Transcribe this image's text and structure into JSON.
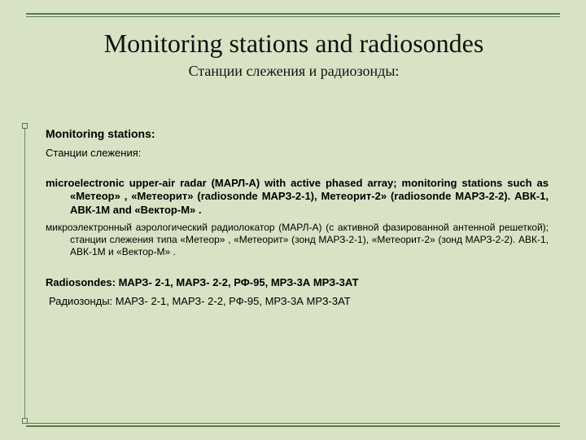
{
  "colors": {
    "background": "#d7e3c4",
    "rule": "#5b7a4f",
    "text": "#000000"
  },
  "title": {
    "en": "Monitoring stations and radiosondes",
    "ru": "Станции слежения и радиозонды:"
  },
  "section1": {
    "heading_en": "Monitoring stations:",
    "heading_ru": "Станции слежения:",
    "para_en": "microelectronic upper-air radar (МАРЛ-А) with active phased array; monitoring stations such as «Метеор» , «Метеорит» (radiosonde МАРЗ-2-1), Метеорит-2» (radiosonde МАРЗ-2-2). АВК-1, АВК-1М and «Вектор-М» .",
    "para_ru": "микроэлектронный аэрологический радиолокатор (МАРЛ-А) (с активной фазированной антенной решеткой); станции слежения типа «Метеор» , «Метеорит» (зонд МАРЗ-2-1), «Метеорит-2» (зонд МАРЗ-2-2). АВК-1, АВК-1М и «Вектор-М» ."
  },
  "section2": {
    "lead_en": "Radiosondes:",
    "rest_en": " МАРЗ- 2-1, МАРЗ- 2-2, РФ-95, МРЗ-3А МРЗ-3АТ",
    "lead_ru": " Радиозонды:",
    "rest_ru": " МАРЗ- 2-1, МАРЗ- 2-2, РФ-95, МРЗ-3А МРЗ-3АТ"
  }
}
